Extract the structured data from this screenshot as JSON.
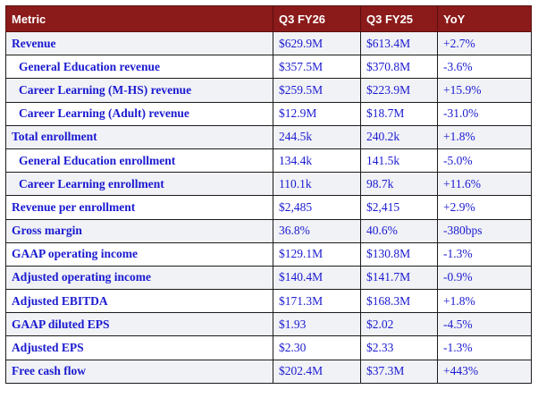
{
  "columns": [
    "Metric",
    "Q3 FY26",
    "Q3 FY25",
    "YoY"
  ],
  "rows": [
    {
      "metric": "Revenue",
      "cur": "$629.9M",
      "prev": "$613.4M",
      "yoy": "+2.7%",
      "sub": false
    },
    {
      "metric": "General Education revenue",
      "cur": "$357.5M",
      "prev": "$370.8M",
      "yoy": "-3.6%",
      "sub": true
    },
    {
      "metric": "Career Learning (M-HS) revenue",
      "cur": "$259.5M",
      "prev": "$223.9M",
      "yoy": "+15.9%",
      "sub": true
    },
    {
      "metric": "Career Learning (Adult) revenue",
      "cur": "$12.9M",
      "prev": "$18.7M",
      "yoy": "-31.0%",
      "sub": true
    },
    {
      "metric": "Total enrollment",
      "cur": "244.5k",
      "prev": "240.2k",
      "yoy": "+1.8%",
      "sub": false
    },
    {
      "metric": "General Education enrollment",
      "cur": "134.4k",
      "prev": "141.5k",
      "yoy": "-5.0%",
      "sub": true
    },
    {
      "metric": "Career Learning enrollment",
      "cur": "110.1k",
      "prev": "98.7k",
      "yoy": "+11.6%",
      "sub": true
    },
    {
      "metric": "Revenue per enrollment",
      "cur": "$2,485",
      "prev": "$2,415",
      "yoy": "+2.9%",
      "sub": false
    },
    {
      "metric": "Gross margin",
      "cur": "36.8%",
      "prev": "40.6%",
      "yoy": "-380bps",
      "sub": false
    },
    {
      "metric": "GAAP operating income",
      "cur": "$129.1M",
      "prev": "$130.8M",
      "yoy": "-1.3%",
      "sub": false
    },
    {
      "metric": "Adjusted operating income",
      "cur": "$140.4M",
      "prev": "$141.7M",
      "yoy": "-0.9%",
      "sub": false
    },
    {
      "metric": "Adjusted EBITDA",
      "cur": "$171.3M",
      "prev": "$168.3M",
      "yoy": "+1.8%",
      "sub": false
    },
    {
      "metric": "GAAP diluted EPS",
      "cur": "$1.93",
      "prev": "$2.02",
      "yoy": "-4.5%",
      "sub": false
    },
    {
      "metric": "Adjusted EPS",
      "cur": "$2.30",
      "prev": "$2.33",
      "yoy": "-1.3%",
      "sub": false
    },
    {
      "metric": "Free cash flow",
      "cur": "$202.4M",
      "prev": "$37.3M",
      "yoy": "+443%",
      "sub": false
    }
  ]
}
